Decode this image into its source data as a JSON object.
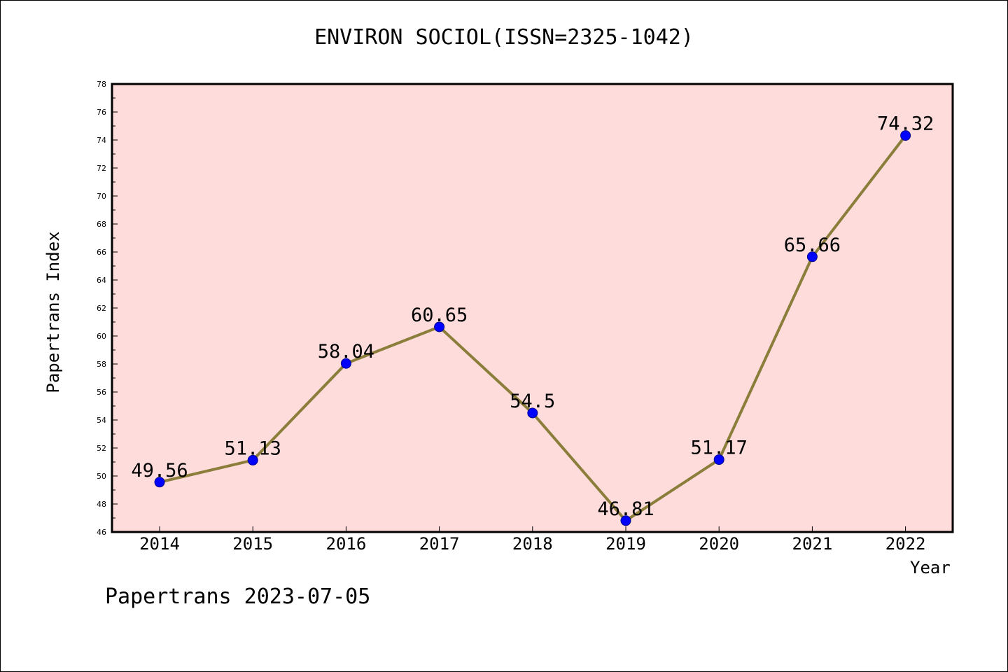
{
  "title": "ENVIRON SOCIOL(ISSN=2325-1042)",
  "footer": "Papertrans 2023-07-05",
  "chart_data": {
    "type": "line",
    "title": "ENVIRON SOCIOL(ISSN=2325-1042)",
    "xlabel": "Year",
    "ylabel": "Papertrans Index",
    "categories": [
      "2014",
      "2015",
      "2016",
      "2017",
      "2018",
      "2019",
      "2020",
      "2021",
      "2022"
    ],
    "values": [
      49.56,
      51.13,
      58.04,
      60.65,
      54.5,
      46.81,
      51.17,
      65.66,
      74.32
    ],
    "data_labels": [
      "49.56",
      "51.13",
      "58.04",
      "60.65",
      "54.5",
      "46.81",
      "51.17",
      "65.66",
      "74.32"
    ],
    "ylim": [
      46,
      78
    ],
    "yticks": [
      46,
      48,
      50,
      52,
      54,
      56,
      58,
      60,
      62,
      64,
      66,
      68,
      70,
      72,
      74,
      76,
      78
    ],
    "grid": false,
    "colors": {
      "plot_background": "#ffdcdc",
      "line": "#8b7d3a",
      "marker": "#0000ff"
    }
  }
}
